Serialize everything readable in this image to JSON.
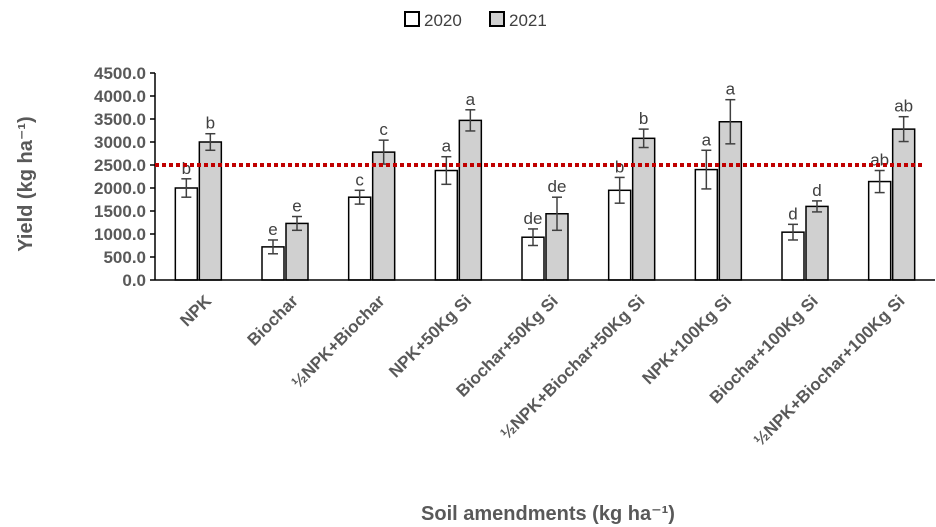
{
  "chart_data": {
    "type": "bar",
    "xlabel": "Soil amendments (kg ha⁻¹)",
    "ylabel": "Yield (kg ha⁻¹)",
    "ylim": [
      0,
      4500
    ],
    "yticks": [
      "0.0",
      "500.0",
      "1000.0",
      "1500.0",
      "2000.0",
      "2500.0",
      "3000.0",
      "3500.0",
      "4000.0",
      "4500.0"
    ],
    "categories": [
      "NPK",
      "Biochar",
      "½NPK+Biochar",
      "NPK+50Kg Si",
      "Biochar+50Kg Si",
      "½NPK+Biochar+50Kg Si",
      "NPK+100Kg Si",
      "Biochar+100Kg Si",
      "½NPK+Biochar+100Kg Si"
    ],
    "series": [
      {
        "name": "2020",
        "color": "#ffffff",
        "values": [
          2000,
          720,
          1800,
          2380,
          930,
          1950,
          2400,
          1040,
          2140
        ],
        "errors": [
          200,
          150,
          150,
          300,
          180,
          280,
          420,
          170,
          240
        ],
        "letters": [
          "b",
          "e",
          "c",
          "a",
          "de",
          "b",
          "a",
          "d",
          "ab"
        ]
      },
      {
        "name": "2021",
        "color": "#d0d0d0",
        "values": [
          3000,
          1230,
          2780,
          3470,
          1440,
          3080,
          3440,
          1600,
          3280
        ],
        "errors": [
          180,
          150,
          260,
          230,
          360,
          200,
          480,
          120,
          270
        ],
        "letters": [
          "b",
          "e",
          "c",
          "a",
          "de",
          "b",
          "a",
          "d",
          "ab"
        ]
      }
    ],
    "reference_line": {
      "value": 2500,
      "color": "#c00000",
      "style": "dotted"
    },
    "legend": "top-center",
    "grid": false
  }
}
